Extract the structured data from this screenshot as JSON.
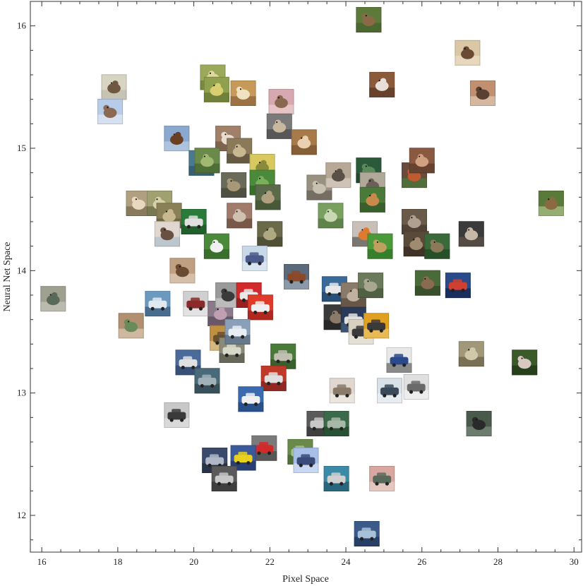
{
  "chart_data": {
    "type": "scatter",
    "title": "",
    "xlabel": "Pixel Space",
    "ylabel": "Neural Net Space",
    "xlim": [
      15.7,
      30.2
    ],
    "ylim": [
      11.7,
      16.2
    ],
    "x_ticks": [
      16,
      18,
      20,
      22,
      24,
      26,
      28,
      30
    ],
    "y_ticks": [
      12,
      13,
      14,
      15,
      16
    ],
    "marker": "image-thumbnail",
    "grid": false,
    "legend": "none",
    "points": [
      {
        "x": 24.6,
        "y": 16.05,
        "subject": "deer",
        "colors": [
          "#5d7a3a",
          "#8a6a45",
          "#3e5a2a"
        ]
      },
      {
        "x": 27.2,
        "y": 15.78,
        "subject": "person",
        "colors": [
          "#d9c7a6",
          "#6b4a33",
          "#f0e4d0"
        ]
      },
      {
        "x": 17.9,
        "y": 15.5,
        "subject": "horse",
        "colors": [
          "#d8d4c4",
          "#6e5842",
          "#b8b4a4"
        ]
      },
      {
        "x": 17.8,
        "y": 15.3,
        "subject": "bird",
        "colors": [
          "#b8cbe8",
          "#8a6a55",
          "#eef2f8"
        ]
      },
      {
        "x": 20.5,
        "y": 15.58,
        "subject": "bird",
        "colors": [
          "#9aaa5a",
          "#e0d8a0",
          "#5e6e30"
        ]
      },
      {
        "x": 20.6,
        "y": 15.48,
        "subject": "bird",
        "colors": [
          "#8fa04e",
          "#d8d070",
          "#576a28"
        ]
      },
      {
        "x": 21.3,
        "y": 15.45,
        "subject": "dog",
        "colors": [
          "#c89a5a",
          "#f0e2c0",
          "#7a5230"
        ]
      },
      {
        "x": 22.3,
        "y": 15.38,
        "subject": "dog",
        "colors": [
          "#d8a8b0",
          "#8a6850",
          "#f0d8d8"
        ]
      },
      {
        "x": 24.95,
        "y": 15.52,
        "subject": "dog",
        "colors": [
          "#8a5a3a",
          "#e8e0d8",
          "#4a3020"
        ]
      },
      {
        "x": 27.6,
        "y": 15.45,
        "subject": "cat",
        "colors": [
          "#c09070",
          "#5a4030",
          "#e8d8c8"
        ]
      },
      {
        "x": 22.25,
        "y": 15.18,
        "subject": "cat",
        "colors": [
          "#7a7a7a",
          "#c8b8a0",
          "#3a3a3a"
        ]
      },
      {
        "x": 19.55,
        "y": 15.08,
        "subject": "horse",
        "colors": [
          "#8aa8d0",
          "#6a4020",
          "#c8d8e8"
        ]
      },
      {
        "x": 20.9,
        "y": 15.08,
        "subject": "dog",
        "colors": [
          "#a08068",
          "#e8dcd0",
          "#604838"
        ]
      },
      {
        "x": 21.2,
        "y": 14.98,
        "subject": "frog",
        "colors": [
          "#8a7a5a",
          "#c8b890",
          "#4a4030"
        ]
      },
      {
        "x": 22.9,
        "y": 15.05,
        "subject": "deer",
        "colors": [
          "#a87a4a",
          "#e8d0b0",
          "#6a4828"
        ]
      },
      {
        "x": 20.2,
        "y": 14.88,
        "subject": "dog",
        "colors": [
          "#4a7a90",
          "#d0a070",
          "#2a4a5a"
        ]
      },
      {
        "x": 20.35,
        "y": 14.9,
        "subject": "frog",
        "colors": [
          "#6a8a4a",
          "#a0b870",
          "#3a5a2a"
        ]
      },
      {
        "x": 21.8,
        "y": 14.85,
        "subject": "bird",
        "colors": [
          "#d8c860",
          "#8a8a3a",
          "#f0e8a0"
        ]
      },
      {
        "x": 21.05,
        "y": 14.7,
        "subject": "deer",
        "colors": [
          "#6a6a5a",
          "#a89878",
          "#3a3a30"
        ]
      },
      {
        "x": 21.8,
        "y": 14.72,
        "subject": "frog",
        "colors": [
          "#4a8a3a",
          "#7ab05a",
          "#2a5a20"
        ]
      },
      {
        "x": 21.95,
        "y": 14.6,
        "subject": "frog",
        "colors": [
          "#5a6a4a",
          "#b0a080",
          "#3a4a2a"
        ]
      },
      {
        "x": 23.3,
        "y": 14.68,
        "subject": "cat",
        "colors": [
          "#9a9080",
          "#c8c0b0",
          "#5a5248"
        ]
      },
      {
        "x": 23.6,
        "y": 14.45,
        "subject": "deer",
        "colors": [
          "#7aa060",
          "#c8d8b0",
          "#4a6a3a"
        ]
      },
      {
        "x": 23.8,
        "y": 14.78,
        "subject": "ostrich",
        "colors": [
          "#b8a898",
          "#5a5048",
          "#e0d8d0"
        ]
      },
      {
        "x": 24.6,
        "y": 14.82,
        "subject": "frog",
        "colors": [
          "#2a5a3a",
          "#5a8a5a",
          "#1a3a2a"
        ]
      },
      {
        "x": 24.7,
        "y": 14.7,
        "subject": "cat",
        "colors": [
          "#b0a898",
          "#6a6058",
          "#d8d0c8"
        ]
      },
      {
        "x": 24.7,
        "y": 14.58,
        "subject": "deer",
        "colors": [
          "#4a7a3a",
          "#c88a4a",
          "#2a4a20"
        ]
      },
      {
        "x": 25.8,
        "y": 14.78,
        "subject": "horse",
        "colors": [
          "#6a4a3a",
          "#c05a30",
          "#3a8a3a"
        ]
      },
      {
        "x": 26.0,
        "y": 14.9,
        "subject": "horse",
        "colors": [
          "#8a5a40",
          "#d0a080",
          "#4a3020"
        ]
      },
      {
        "x": 29.4,
        "y": 14.55,
        "subject": "deer",
        "colors": [
          "#5a7a3a",
          "#8a6a40",
          "#c8d8a0"
        ]
      },
      {
        "x": 18.55,
        "y": 14.55,
        "subject": "cat",
        "colors": [
          "#b0a080",
          "#e8d8c0",
          "#6a5a40"
        ]
      },
      {
        "x": 19.1,
        "y": 14.55,
        "subject": "frog",
        "colors": [
          "#a0a070",
          "#d8d0a8",
          "#5a5a38"
        ]
      },
      {
        "x": 19.35,
        "y": 14.45,
        "subject": "deer",
        "colors": [
          "#8a8058",
          "#c8b890",
          "#5a5038"
        ]
      },
      {
        "x": 20.0,
        "y": 14.4,
        "subject": "truck",
        "colors": [
          "#2a7a3a",
          "#e0e0e0",
          "#1a4a20"
        ]
      },
      {
        "x": 21.2,
        "y": 14.45,
        "subject": "horse",
        "colors": [
          "#a07a6a",
          "#d0c0b0",
          "#5a4030"
        ]
      },
      {
        "x": 22.0,
        "y": 14.3,
        "subject": "frog",
        "colors": [
          "#6a6a4a",
          "#b0a880",
          "#3a3a28"
        ]
      },
      {
        "x": 19.3,
        "y": 14.3,
        "subject": "dog",
        "colors": [
          "#e0d8d0",
          "#6a5040",
          "#a0b8c8"
        ]
      },
      {
        "x": 20.6,
        "y": 14.2,
        "subject": "horse",
        "colors": [
          "#4a8a3a",
          "#f0f0f0",
          "#2a5a20"
        ]
      },
      {
        "x": 24.5,
        "y": 14.3,
        "subject": "dog",
        "colors": [
          "#c8c0b8",
          "#e07a30",
          "#3a3a3a"
        ]
      },
      {
        "x": 24.9,
        "y": 14.2,
        "subject": "deer",
        "colors": [
          "#4a9a3a",
          "#c0a060",
          "#2a6a20"
        ]
      },
      {
        "x": 25.8,
        "y": 14.4,
        "subject": "horse",
        "colors": [
          "#6a5a4a",
          "#b0a090",
          "#3a3028"
        ]
      },
      {
        "x": 25.85,
        "y": 14.22,
        "subject": "cat",
        "colors": [
          "#5a4a3a",
          "#a08a70",
          "#2a2018"
        ]
      },
      {
        "x": 26.4,
        "y": 14.2,
        "subject": "deer",
        "colors": [
          "#3a6a3a",
          "#8a7a5a",
          "#1a3a1a"
        ]
      },
      {
        "x": 27.3,
        "y": 14.3,
        "subject": "deer",
        "colors": [
          "#3a3a3a",
          "#c8b8a8",
          "#6a5a4a"
        ]
      },
      {
        "x": 21.6,
        "y": 14.1,
        "subject": "airplane",
        "colors": [
          "#c8d8e8",
          "#4a5a8a",
          "#e8eef8"
        ]
      },
      {
        "x": 19.7,
        "y": 14.0,
        "subject": "horse",
        "colors": [
          "#c0a080",
          "#6a4a30",
          "#e8d8c8"
        ]
      },
      {
        "x": 22.7,
        "y": 13.95,
        "subject": "ship",
        "colors": [
          "#5a6a7a",
          "#8a4a2a",
          "#b0c0d0"
        ]
      },
      {
        "x": 16.3,
        "y": 13.77,
        "subject": "frog",
        "colors": [
          "#a0a090",
          "#5a6a5a",
          "#d0d0c8"
        ]
      },
      {
        "x": 19.05,
        "y": 13.73,
        "subject": "ship",
        "colors": [
          "#6a9ac0",
          "#e0e8f0",
          "#2a4a6a"
        ]
      },
      {
        "x": 20.05,
        "y": 13.73,
        "subject": "ship",
        "colors": [
          "#d0d0d0",
          "#8a2a2a",
          "#f0f0f0"
        ]
      },
      {
        "x": 20.7,
        "y": 13.65,
        "subject": "deer",
        "colors": [
          "#8a7a8a",
          "#c0a0b0",
          "#4a3a4a"
        ]
      },
      {
        "x": 20.9,
        "y": 13.8,
        "subject": "bird",
        "colors": [
          "#9a9a9a",
          "#3a3a3a",
          "#d8d8d8"
        ]
      },
      {
        "x": 21.45,
        "y": 13.8,
        "subject": "truck",
        "colors": [
          "#d02a2a",
          "#e8e8e8",
          "#6a1a1a"
        ]
      },
      {
        "x": 21.75,
        "y": 13.7,
        "subject": "truck",
        "colors": [
          "#e03a2a",
          "#f0f0f0",
          "#8a1a1a"
        ]
      },
      {
        "x": 23.7,
        "y": 13.85,
        "subject": "truck",
        "colors": [
          "#3a6a9a",
          "#e8e8e8",
          "#1a3a5a"
        ]
      },
      {
        "x": 23.75,
        "y": 13.62,
        "subject": "horse",
        "colors": [
          "#3a3a3a",
          "#8a7a6a",
          "#1a1a1a"
        ]
      },
      {
        "x": 24.2,
        "y": 13.8,
        "subject": "bird",
        "colors": [
          "#8a7a6a",
          "#c0b0a0",
          "#4a3a2a"
        ]
      },
      {
        "x": 24.65,
        "y": 13.88,
        "subject": "bird",
        "colors": [
          "#6a7a5a",
          "#a8a890",
          "#3a4a30"
        ]
      },
      {
        "x": 24.2,
        "y": 13.6,
        "subject": "ship",
        "colors": [
          "#2a3a5a",
          "#e0e0e0",
          "#4a6a8a"
        ]
      },
      {
        "x": 24.4,
        "y": 13.5,
        "subject": "automobile",
        "colors": [
          "#d8d0c0",
          "#3a3a3a",
          "#f0ece4"
        ]
      },
      {
        "x": 24.8,
        "y": 13.55,
        "subject": "truck",
        "colors": [
          "#e0a020",
          "#3a3a3a",
          "#f0d080"
        ]
      },
      {
        "x": 26.15,
        "y": 13.9,
        "subject": "deer",
        "colors": [
          "#4a6a3a",
          "#8a6a50",
          "#2a3a20"
        ]
      },
      {
        "x": 26.95,
        "y": 13.88,
        "subject": "airplane",
        "colors": [
          "#2a4a8a",
          "#d04030",
          "#0a1a3a"
        ]
      },
      {
        "x": 18.35,
        "y": 13.55,
        "subject": "deer",
        "colors": [
          "#b09070",
          "#6a8a5a",
          "#e8d8c8"
        ]
      },
      {
        "x": 20.75,
        "y": 13.45,
        "subject": "truck",
        "colors": [
          "#c09040",
          "#6a5030",
          "#e8d8b0"
        ]
      },
      {
        "x": 21.0,
        "y": 13.35,
        "subject": "truck",
        "colors": [
          "#8a8a7a",
          "#d8d8c8",
          "#4a4a40"
        ]
      },
      {
        "x": 21.15,
        "y": 13.5,
        "subject": "ship",
        "colors": [
          "#8aa0b8",
          "#e8eef4",
          "#4a5a6a"
        ]
      },
      {
        "x": 19.85,
        "y": 13.25,
        "subject": "truck",
        "colors": [
          "#4a6a9a",
          "#e0e0e0",
          "#2a3a5a"
        ]
      },
      {
        "x": 20.35,
        "y": 13.1,
        "subject": "ship",
        "colors": [
          "#4a6a7a",
          "#a0b0b8",
          "#2a3a40"
        ]
      },
      {
        "x": 22.35,
        "y": 13.3,
        "subject": "truck",
        "colors": [
          "#4a7a3a",
          "#c0c0b0",
          "#2a4a20"
        ]
      },
      {
        "x": 22.1,
        "y": 13.12,
        "subject": "truck",
        "colors": [
          "#c03a2a",
          "#e0e0e0",
          "#6a1a1a"
        ]
      },
      {
        "x": 21.5,
        "y": 12.95,
        "subject": "truck",
        "colors": [
          "#3a6ab0",
          "#f0f0f0",
          "#1a3a6a"
        ]
      },
      {
        "x": 19.55,
        "y": 12.82,
        "subject": "automobile",
        "colors": [
          "#c8c8c8",
          "#3a3a3a",
          "#e8e8e8"
        ]
      },
      {
        "x": 25.4,
        "y": 13.27,
        "subject": "automobile",
        "colors": [
          "#e8e8e8",
          "#2a4a8a",
          "#3a3a3a"
        ]
      },
      {
        "x": 27.3,
        "y": 13.32,
        "subject": "bird",
        "colors": [
          "#a09878",
          "#d0c8a8",
          "#5a5038"
        ]
      },
      {
        "x": 28.7,
        "y": 13.25,
        "subject": "cat",
        "colors": [
          "#3a5a2a",
          "#d8c8c0",
          "#1a2a10"
        ]
      },
      {
        "x": 23.9,
        "y": 13.02,
        "subject": "automobile",
        "colors": [
          "#e0d8d0",
          "#8a7a6a",
          "#f4f0ec"
        ]
      },
      {
        "x": 25.15,
        "y": 13.02,
        "subject": "automobile",
        "colors": [
          "#d8e0e8",
          "#3a4a5a",
          "#f4f6f8"
        ]
      },
      {
        "x": 25.85,
        "y": 13.05,
        "subject": "automobile",
        "colors": [
          "#e0e0e0",
          "#6a6a6a",
          "#f8f8f8"
        ]
      },
      {
        "x": 23.3,
        "y": 12.75,
        "subject": "truck",
        "colors": [
          "#5a5a5a",
          "#c8c8c8",
          "#2a2a2a"
        ]
      },
      {
        "x": 23.75,
        "y": 12.75,
        "subject": "truck",
        "colors": [
          "#3a6a4a",
          "#a8b8a8",
          "#1a3a20"
        ]
      },
      {
        "x": 27.5,
        "y": 12.75,
        "subject": "bird",
        "colors": [
          "#4a5a4a",
          "#2a2a2a",
          "#8a9a8a"
        ]
      },
      {
        "x": 21.85,
        "y": 12.55,
        "subject": "truck",
        "colors": [
          "#7a7a7a",
          "#d02a2a",
          "#3a3a3a"
        ]
      },
      {
        "x": 21.3,
        "y": 12.47,
        "subject": "automobile",
        "colors": [
          "#3a5a9a",
          "#e8d020",
          "#1a2a5a"
        ]
      },
      {
        "x": 20.55,
        "y": 12.45,
        "subject": "truck",
        "colors": [
          "#3a4a6a",
          "#b0b8c8",
          "#1a2030"
        ]
      },
      {
        "x": 20.8,
        "y": 12.3,
        "subject": "automobile",
        "colors": [
          "#5a5a5a",
          "#c8c8c8",
          "#2a2a2a"
        ]
      },
      {
        "x": 22.8,
        "y": 12.52,
        "subject": "airplane",
        "colors": [
          "#6a8a4a",
          "#a8c090",
          "#3a5a2a"
        ]
      },
      {
        "x": 22.95,
        "y": 12.45,
        "subject": "airplane",
        "colors": [
          "#a8c0e8",
          "#3a4a7a",
          "#e0e8f8"
        ]
      },
      {
        "x": 23.75,
        "y": 12.3,
        "subject": "automobile",
        "colors": [
          "#3a8aa8",
          "#d0d0d0",
          "#1a4a5a"
        ]
      },
      {
        "x": 24.95,
        "y": 12.3,
        "subject": "automobile",
        "colors": [
          "#d8a8a0",
          "#5a6a5a",
          "#f0e0d8"
        ]
      },
      {
        "x": 24.55,
        "y": 11.85,
        "subject": "automobile",
        "colors": [
          "#3a5a8a",
          "#a8c0d8",
          "#1a2a4a"
        ]
      }
    ]
  }
}
